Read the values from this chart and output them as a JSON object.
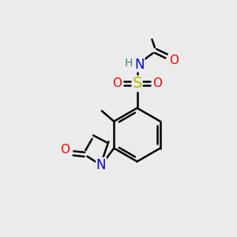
{
  "bg_color": "#ebebeb",
  "bond_color": "#000000",
  "bond_width": 1.8,
  "atom_colors": {
    "C": "#000000",
    "N": "#0000cc",
    "O": "#ff0000",
    "S": "#b8b800",
    "H": "#4a7a7a"
  },
  "font_size": 11,
  "fig_size": [
    3.0,
    3.0
  ],
  "dpi": 100
}
